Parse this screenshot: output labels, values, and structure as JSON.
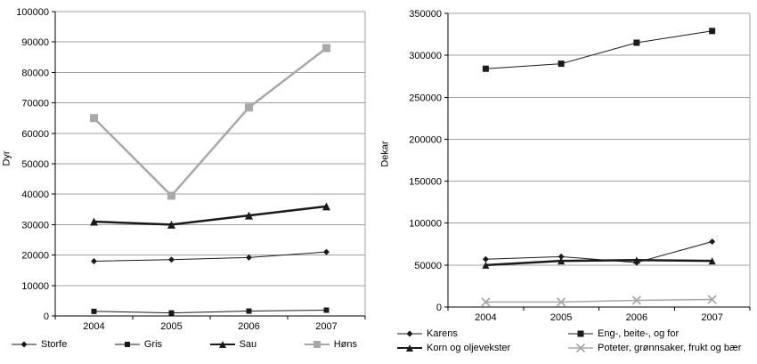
{
  "chart_data": [
    {
      "type": "line",
      "title": "",
      "xlabel": "",
      "ylabel": "Dyr",
      "ylim": [
        0,
        100000
      ],
      "ytick_interval": 10000,
      "grid": true,
      "legend_position": "bottom",
      "categories": [
        "2004",
        "2005",
        "2006",
        "2007"
      ],
      "series": [
        {
          "name": "Storfe",
          "marker": "diamond",
          "color": "#1a1a1a",
          "line_width": 1,
          "marker_size": 7,
          "values": [
            18000,
            18500,
            19200,
            21000
          ]
        },
        {
          "name": "Gris",
          "marker": "square",
          "color": "#1a1a1a",
          "line_width": 1,
          "marker_size": 6,
          "values": [
            1500,
            1000,
            1600,
            1900
          ]
        },
        {
          "name": "Sau",
          "marker": "triangle",
          "color": "#1a1a1a",
          "line_width": 2.5,
          "marker_size": 9,
          "values": [
            31000,
            30000,
            33000,
            36000
          ]
        },
        {
          "name": "Høns",
          "marker": "square",
          "color": "#a8a8a8",
          "line_width": 2.5,
          "marker_size": 9,
          "values": [
            65000,
            39500,
            68500,
            88000
          ]
        }
      ]
    },
    {
      "type": "line",
      "title": "",
      "xlabel": "",
      "ylabel": "Dekar",
      "ylim": [
        0,
        350000
      ],
      "ytick_interval": 50000,
      "grid": true,
      "legend_position": "bottom",
      "categories": [
        "2004",
        "2005",
        "2006",
        "2007"
      ],
      "series": [
        {
          "name": "Karens",
          "marker": "diamond",
          "color": "#1a1a1a",
          "line_width": 1,
          "marker_size": 7,
          "values": [
            57000,
            60000,
            53000,
            78000
          ]
        },
        {
          "name": "Eng-, beite-, og for",
          "marker": "square",
          "color": "#1a1a1a",
          "line_width": 1,
          "marker_size": 7,
          "values": [
            284000,
            290000,
            315000,
            329000
          ]
        },
        {
          "name": "Korn og oljevekster",
          "marker": "triangle",
          "color": "#1a1a1a",
          "line_width": 2.5,
          "marker_size": 8,
          "values": [
            50000,
            55000,
            56000,
            55000
          ]
        },
        {
          "name": "Poteter, grønnsaker, frukt og bær",
          "marker": "x",
          "color": "#a8a8a8",
          "line_width": 1.5,
          "marker_size": 8,
          "values": [
            6000,
            6000,
            8000,
            9000
          ]
        }
      ]
    }
  ],
  "colors": {
    "background": "#ffffff",
    "gridline": "#a0a0a0",
    "axis": "#000000",
    "text": "#000000",
    "series_gray": "#a8a8a8",
    "series_black": "#1a1a1a"
  }
}
